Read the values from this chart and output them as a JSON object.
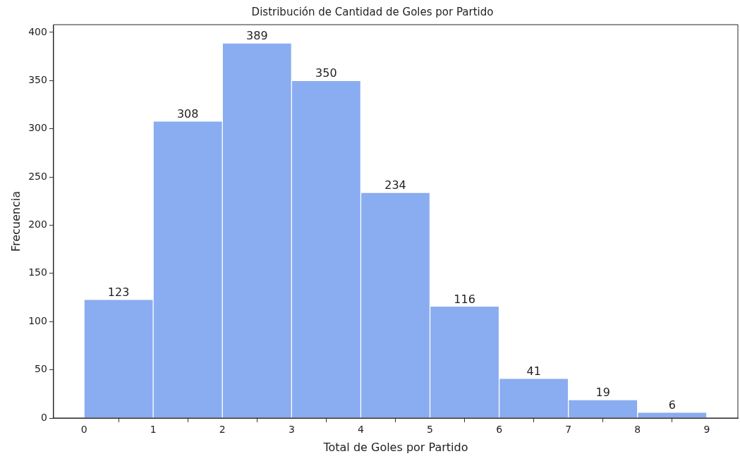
{
  "chart_data": {
    "type": "histogram",
    "title": "Distribución de Cantidad de Goles por Partido",
    "xlabel": "Total de Goles por Partido",
    "ylabel": "Frecuencia",
    "bins": [
      0,
      1,
      2,
      3,
      4,
      5,
      6,
      7,
      8,
      9
    ],
    "values": [
      123,
      308,
      389,
      350,
      234,
      116,
      41,
      19,
      6
    ],
    "color": "#8aacf0",
    "xlim": [
      -0.44,
      9.45
    ],
    "xticks": [
      0,
      1,
      2,
      3,
      4,
      5,
      6,
      7,
      8,
      9
    ],
    "ylim": [
      0,
      408
    ],
    "yticks": [
      0,
      50,
      100,
      150,
      200,
      250,
      300,
      350,
      400
    ],
    "data_labels": true,
    "grid": false,
    "legend": false
  }
}
